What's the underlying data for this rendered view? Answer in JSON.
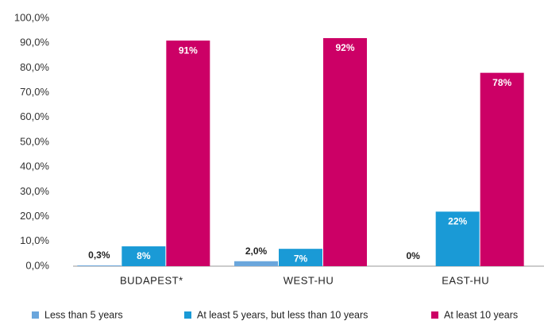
{
  "chart_data": {
    "type": "bar",
    "categories": [
      "BUDAPEST*",
      "WEST-HU",
      "EAST-HU"
    ],
    "series": [
      {
        "name": "Less than 5 years",
        "color": "#6aa6dc",
        "values": [
          0.3,
          2.0,
          0
        ],
        "value_labels": [
          "0,3%",
          "2,0%",
          "0%"
        ]
      },
      {
        "name": "At least 5 years, but less than 10 years",
        "color": "#1a9ad6",
        "values": [
          8,
          7,
          22
        ],
        "value_labels": [
          "8%",
          "7%",
          "22%"
        ]
      },
      {
        "name": "At least 10 years",
        "color": "#cc0066",
        "values": [
          91,
          92,
          78
        ],
        "value_labels": [
          "91%",
          "92%",
          "78%"
        ]
      }
    ],
    "ylim": [
      0,
      100
    ],
    "yticks": [
      {
        "value": 0,
        "label": "0,0%"
      },
      {
        "value": 10,
        "label": "10,0%"
      },
      {
        "value": 20,
        "label": "20,0%"
      },
      {
        "value": 30,
        "label": "30,0%"
      },
      {
        "value": 40,
        "label": "40,0%"
      },
      {
        "value": 50,
        "label": "50,0%"
      },
      {
        "value": 60,
        "label": "60,0%"
      },
      {
        "value": 70,
        "label": "70,0%"
      },
      {
        "value": 80,
        "label": "80,0%"
      },
      {
        "value": 90,
        "label": "90,0%"
      },
      {
        "value": 100,
        "label": "100,0%"
      }
    ],
    "grid": false,
    "legend": "bottom"
  }
}
